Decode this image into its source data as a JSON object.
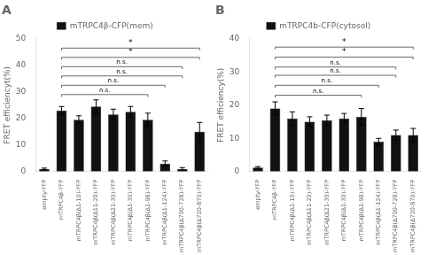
{
  "chart_data": [
    {
      "type": "bar",
      "title": "A",
      "ylabel": "FRET efficiencyt(%)",
      "categories": [
        "empty-YFP",
        "mTRPC4β-YFP",
        "mTRPC4β(Δ1-10)-YFP",
        "mTRPC4β(Δ11-20)-YFP",
        "mTRPC4β(Δ21-30)-YFP",
        "mTRPC4β(Δ1-30)-YFP",
        "mTRPC4β(Δ1-98)-YFP",
        "mTRPC4β(Δ1-124)-YFP",
        "mTRPC4β(Δ700-728)-YFP",
        "mTRPC4β(Δ720-870)-YFP"
      ],
      "series": [
        {
          "name": "mTRPC4β-CFP(mem)",
          "color": "#111111",
          "values": [
            1.0,
            23.0,
            19.5,
            24.5,
            21.5,
            22.5,
            19.5,
            3.0,
            1.0,
            15.0
          ],
          "errors": [
            0.3,
            1.5,
            1.5,
            2.5,
            2.0,
            2.0,
            2.5,
            1.0,
            0.5,
            3.5
          ]
        }
      ],
      "ylim": [
        0,
        50
      ],
      "yticks": [
        0,
        10,
        20,
        30,
        40,
        50
      ],
      "grid": false,
      "legend": "top",
      "annotations": [
        {
          "text": "n.s.",
          "x1": "mTRPC4β-YFP",
          "x2": "mTRPC4β(Δ1-98)-YFP",
          "y": 29.0
        },
        {
          "text": "n.s.",
          "x1": "mTRPC4β-YFP",
          "x2": "mTRPC4β(Δ1-124)-YFP",
          "y": 32.5
        },
        {
          "text": "n.s.",
          "x1": "mTRPC4β-YFP",
          "x2": "mTRPC4β(Δ700-728)-YFP",
          "y": 36.0
        },
        {
          "text": "n.s.",
          "x1": "mTRPC4β-YFP",
          "x2": "mTRPC4β(Δ700-728)-YFP",
          "y": 39.5
        },
        {
          "text": "*",
          "x1": "mTRPC4β-YFP",
          "x2": "mTRPC4β(Δ720-870)-YFP",
          "y": 43.0
        },
        {
          "text": "*",
          "x1": "mTRPC4β-YFP",
          "x2": "mTRPC4β(Δ720-870)-YFP",
          "y": 46.5
        }
      ]
    },
    {
      "type": "bar",
      "title": "B",
      "ylabel": "FRET efficiency(%)",
      "categories": [
        "empty-YFP",
        "mTRPC4β-YFP",
        "mTRPC4β(Δ1-10)-YFP",
        "mTRPC4β(Δ11-20)-YFP",
        "mTRPC4β(Δ21-30)-YFP",
        "mTRPC4β(Δ1-30)-YFP",
        "mTRPC4β(Δ1-98)-YFP",
        "mTRPC4β(Δ1-124)-YFP",
        "mTRPC4β(Δ700-728)-YFP",
        "mTRPC4β(Δ720-870)-YFP"
      ],
      "series": [
        {
          "name": "mTRPC4b-CFP(cytosol)",
          "color": "#111111",
          "values": [
            1.2,
            19.0,
            16.0,
            15.0,
            15.5,
            16.0,
            16.5,
            9.0,
            11.0,
            11.0
          ],
          "errors": [
            0.3,
            2.0,
            2.0,
            1.5,
            1.5,
            1.5,
            2.5,
            1.0,
            1.5,
            2.0
          ]
        }
      ],
      "ylim": [
        0,
        40
      ],
      "yticks": [
        0,
        10,
        20,
        30,
        40
      ],
      "grid": false,
      "legend": "top",
      "annotations": [
        {
          "text": "n.s.",
          "x1": "mTRPC4β-YFP",
          "x2": "mTRPC4β(Δ1-98)-YFP",
          "y": 23.0
        },
        {
          "text": "n.s.",
          "x1": "mTRPC4β-YFP",
          "x2": "mTRPC4β(Δ1-124)-YFP",
          "y": 26.0
        },
        {
          "text": "n.s.",
          "x1": "mTRPC4β-YFP",
          "x2": "mTRPC4β(Δ700-728)-YFP",
          "y": 29.0
        },
        {
          "text": "n.s.",
          "x1": "mTRPC4β-YFP",
          "x2": "mTRPC4β(Δ700-728)-YFP",
          "y": 31.5
        },
        {
          "text": "*",
          "x1": "mTRPC4β-YFP",
          "x2": "mTRPC4β(Δ720-870)-YFP",
          "y": 34.5
        },
        {
          "text": "*",
          "x1": "mTRPC4β-YFP",
          "x2": "mTRPC4β(Δ720-870)-YFP",
          "y": 37.5
        }
      ]
    }
  ]
}
